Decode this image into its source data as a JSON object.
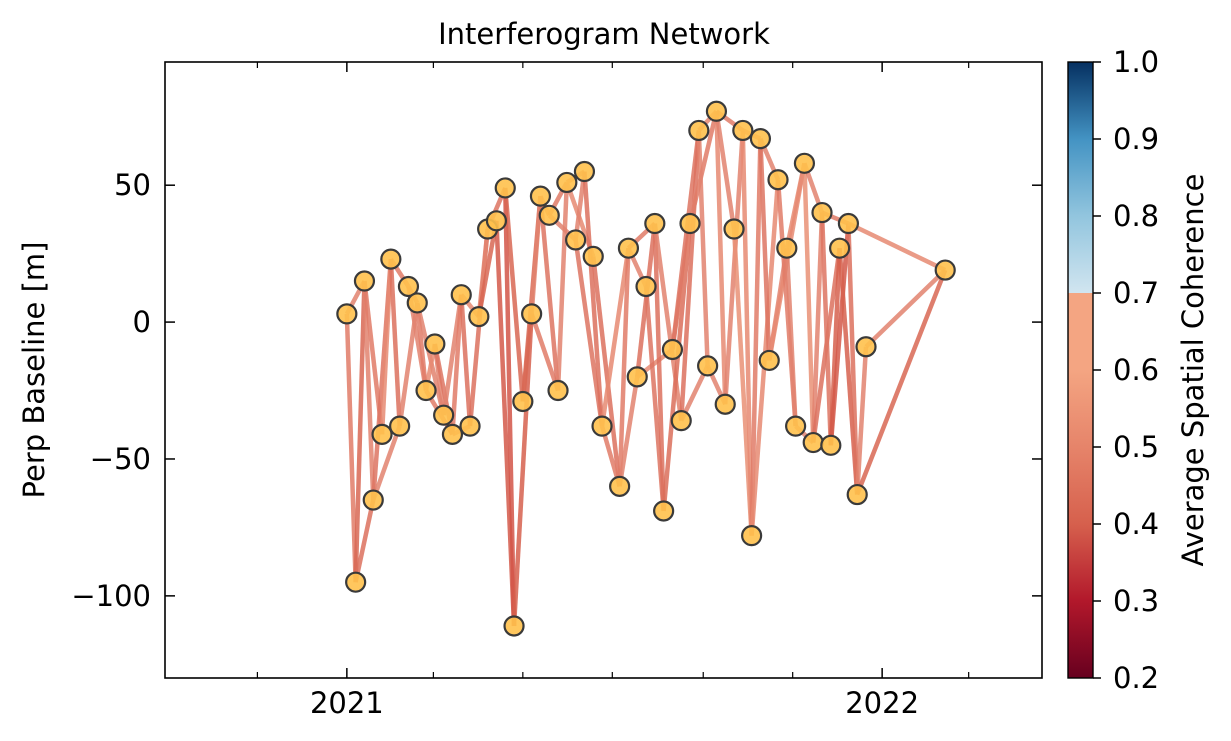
{
  "chart_data": {
    "type": "line",
    "title": "Interferogram Network",
    "xlabel": "",
    "ylabel": "Perp Baseline [m]",
    "x_tick_labels": [
      "2021",
      "2022"
    ],
    "x_range": [
      "2020-08-30",
      "2022-04-20"
    ],
    "ylim": [
      -130,
      95
    ],
    "y_ticks": [
      -100,
      -50,
      0,
      50
    ],
    "grid": false,
    "colorbar": {
      "label": "Average Spatial Coherence",
      "min": 0.2,
      "max": 1.0,
      "ticks": [
        "0.2",
        "0.3",
        "0.4",
        "0.5",
        "0.6",
        "0.7",
        "0.8",
        "0.9",
        "1.0"
      ],
      "colormap": "RdBu",
      "visible_range": [
        0.2,
        0.7
      ]
    },
    "colors": {
      "edge": "#e0705f",
      "node_fill": "#ffc14d",
      "node_stroke": "#3a3a3a"
    },
    "acquisitions": [
      {
        "date": "2021-01-01",
        "bperp": 3
      },
      {
        "date": "2021-01-07",
        "bperp": -95
      },
      {
        "date": "2021-01-13",
        "bperp": 15
      },
      {
        "date": "2021-01-19",
        "bperp": -65
      },
      {
        "date": "2021-01-25",
        "bperp": -41
      },
      {
        "date": "2021-01-31",
        "bperp": 23
      },
      {
        "date": "2021-02-06",
        "bperp": -38
      },
      {
        "date": "2021-02-12",
        "bperp": 13
      },
      {
        "date": "2021-02-18",
        "bperp": 7
      },
      {
        "date": "2021-02-24",
        "bperp": -25
      },
      {
        "date": "2021-03-02",
        "bperp": -8
      },
      {
        "date": "2021-03-08",
        "bperp": -34
      },
      {
        "date": "2021-03-14",
        "bperp": -41
      },
      {
        "date": "2021-03-20",
        "bperp": 10
      },
      {
        "date": "2021-03-26",
        "bperp": -38
      },
      {
        "date": "2021-04-01",
        "bperp": 2
      },
      {
        "date": "2021-04-07",
        "bperp": 34
      },
      {
        "date": "2021-04-13",
        "bperp": 37
      },
      {
        "date": "2021-04-19",
        "bperp": 49
      },
      {
        "date": "2021-04-25",
        "bperp": -111
      },
      {
        "date": "2021-05-01",
        "bperp": -29
      },
      {
        "date": "2021-05-07",
        "bperp": 3
      },
      {
        "date": "2021-05-13",
        "bperp": 46
      },
      {
        "date": "2021-05-19",
        "bperp": 39
      },
      {
        "date": "2021-05-25",
        "bperp": -25
      },
      {
        "date": "2021-05-31",
        "bperp": 51
      },
      {
        "date": "2021-06-06",
        "bperp": 30
      },
      {
        "date": "2021-06-12",
        "bperp": 55
      },
      {
        "date": "2021-06-18",
        "bperp": 24
      },
      {
        "date": "2021-06-24",
        "bperp": -38
      },
      {
        "date": "2021-07-06",
        "bperp": -60
      },
      {
        "date": "2021-07-12",
        "bperp": 27
      },
      {
        "date": "2021-07-18",
        "bperp": -20
      },
      {
        "date": "2021-07-24",
        "bperp": 13
      },
      {
        "date": "2021-07-30",
        "bperp": 36
      },
      {
        "date": "2021-08-05",
        "bperp": -69
      },
      {
        "date": "2021-08-11",
        "bperp": -10
      },
      {
        "date": "2021-08-17",
        "bperp": -36
      },
      {
        "date": "2021-08-23",
        "bperp": 36
      },
      {
        "date": "2021-08-29",
        "bperp": 70
      },
      {
        "date": "2021-09-04",
        "bperp": -16
      },
      {
        "date": "2021-09-10",
        "bperp": 77
      },
      {
        "date": "2021-09-16",
        "bperp": -30
      },
      {
        "date": "2021-09-22",
        "bperp": 34
      },
      {
        "date": "2021-09-28",
        "bperp": 70
      },
      {
        "date": "2021-10-04",
        "bperp": -78
      },
      {
        "date": "2021-10-10",
        "bperp": 67
      },
      {
        "date": "2021-10-16",
        "bperp": -14
      },
      {
        "date": "2021-10-22",
        "bperp": 52
      },
      {
        "date": "2021-10-28",
        "bperp": 27
      },
      {
        "date": "2021-11-03",
        "bperp": -38
      },
      {
        "date": "2021-11-09",
        "bperp": 58
      },
      {
        "date": "2021-11-15",
        "bperp": -44
      },
      {
        "date": "2021-11-21",
        "bperp": 40
      },
      {
        "date": "2021-11-27",
        "bperp": -45
      },
      {
        "date": "2021-12-03",
        "bperp": 27
      },
      {
        "date": "2021-12-09",
        "bperp": 36
      },
      {
        "date": "2021-12-15",
        "bperp": -63
      },
      {
        "date": "2021-12-21",
        "bperp": -9
      },
      {
        "date": "2022-02-13",
        "bperp": 19
      }
    ],
    "pairs": [
      [
        0,
        1,
        0.58
      ],
      [
        0,
        2,
        0.6
      ],
      [
        1,
        2,
        0.52
      ],
      [
        1,
        3,
        0.55
      ],
      [
        2,
        3,
        0.6
      ],
      [
        2,
        4,
        0.58
      ],
      [
        3,
        5,
        0.56
      ],
      [
        4,
        5,
        0.62
      ],
      [
        3,
        6,
        0.6
      ],
      [
        5,
        6,
        0.55
      ],
      [
        5,
        7,
        0.58
      ],
      [
        6,
        8,
        0.6
      ],
      [
        7,
        8,
        0.62
      ],
      [
        7,
        9,
        0.6
      ],
      [
        8,
        9,
        0.58
      ],
      [
        8,
        11,
        0.6
      ],
      [
        9,
        10,
        0.62
      ],
      [
        9,
        12,
        0.58
      ],
      [
        10,
        11,
        0.6
      ],
      [
        10,
        12,
        0.56
      ],
      [
        11,
        13,
        0.6
      ],
      [
        12,
        13,
        0.58
      ],
      [
        12,
        14,
        0.6
      ],
      [
        13,
        14,
        0.55
      ],
      [
        13,
        15,
        0.62
      ],
      [
        14,
        16,
        0.55
      ],
      [
        15,
        16,
        0.6
      ],
      [
        15,
        17,
        0.52
      ],
      [
        16,
        17,
        0.58
      ],
      [
        16,
        18,
        0.56
      ],
      [
        17,
        19,
        0.48
      ],
      [
        18,
        19,
        0.47
      ],
      [
        18,
        20,
        0.52
      ],
      [
        19,
        21,
        0.5
      ],
      [
        20,
        21,
        0.55
      ],
      [
        20,
        22,
        0.52
      ],
      [
        21,
        22,
        0.6
      ],
      [
        21,
        24,
        0.58
      ],
      [
        22,
        23,
        0.62
      ],
      [
        22,
        24,
        0.56
      ],
      [
        23,
        25,
        0.58
      ],
      [
        24,
        25,
        0.6
      ],
      [
        23,
        26,
        0.6
      ],
      [
        25,
        27,
        0.58
      ],
      [
        25,
        28,
        0.62
      ],
      [
        26,
        27,
        0.6
      ],
      [
        26,
        29,
        0.56
      ],
      [
        27,
        29,
        0.55
      ],
      [
        28,
        30,
        0.55
      ],
      [
        29,
        30,
        0.58
      ],
      [
        29,
        31,
        0.62
      ],
      [
        30,
        31,
        0.58
      ],
      [
        30,
        32,
        0.6
      ],
      [
        31,
        33,
        0.6
      ],
      [
        31,
        34,
        0.58
      ],
      [
        32,
        34,
        0.55
      ],
      [
        32,
        36,
        0.62
      ],
      [
        33,
        35,
        0.56
      ],
      [
        34,
        35,
        0.55
      ],
      [
        34,
        37,
        0.6
      ],
      [
        35,
        38,
        0.54
      ],
      [
        36,
        38,
        0.6
      ],
      [
        36,
        39,
        0.56
      ],
      [
        37,
        39,
        0.55
      ],
      [
        37,
        40,
        0.6
      ],
      [
        38,
        41,
        0.58
      ],
      [
        39,
        40,
        0.6
      ],
      [
        39,
        41,
        0.62
      ],
      [
        40,
        42,
        0.6
      ],
      [
        41,
        42,
        0.62
      ],
      [
        41,
        43,
        0.6
      ],
      [
        41,
        44,
        0.58
      ],
      [
        42,
        44,
        0.6
      ],
      [
        43,
        45,
        0.64
      ],
      [
        44,
        45,
        0.62
      ],
      [
        44,
        46,
        0.6
      ],
      [
        45,
        46,
        0.58
      ],
      [
        45,
        48,
        0.62
      ],
      [
        46,
        47,
        0.56
      ],
      [
        46,
        48,
        0.6
      ],
      [
        47,
        49,
        0.6
      ],
      [
        47,
        51,
        0.62
      ],
      [
        48,
        50,
        0.58
      ],
      [
        49,
        50,
        0.6
      ],
      [
        49,
        51,
        0.62
      ],
      [
        50,
        52,
        0.6
      ],
      [
        51,
        52,
        0.64
      ],
      [
        51,
        53,
        0.6
      ],
      [
        52,
        53,
        0.6
      ],
      [
        52,
        55,
        0.55
      ],
      [
        53,
        54,
        0.56
      ],
      [
        53,
        56,
        0.58
      ],
      [
        54,
        55,
        0.5
      ],
      [
        54,
        56,
        0.48
      ],
      [
        55,
        57,
        0.5
      ],
      [
        56,
        57,
        0.55
      ],
      [
        56,
        59,
        0.62
      ],
      [
        57,
        58,
        0.6
      ],
      [
        57,
        59,
        0.52
      ],
      [
        58,
        59,
        0.6
      ]
    ]
  }
}
